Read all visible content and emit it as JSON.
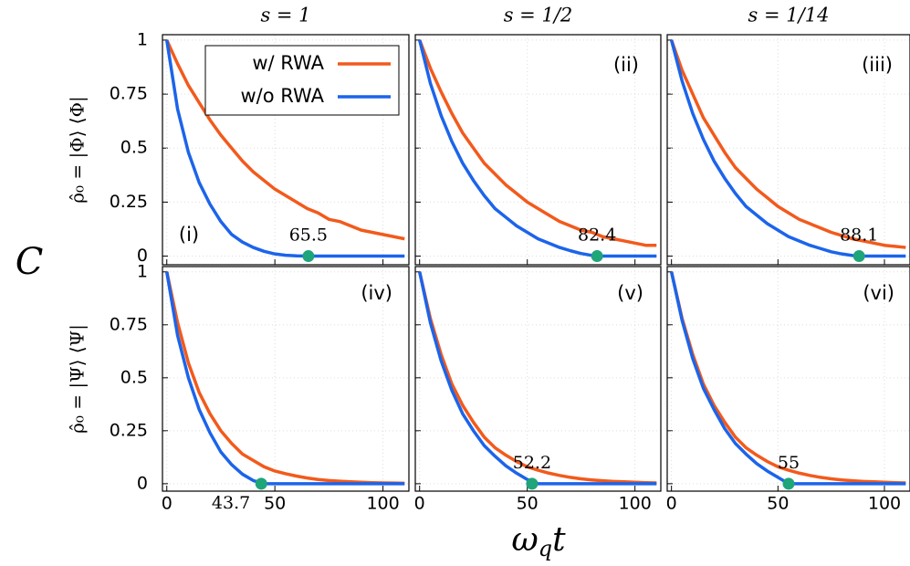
{
  "figure": {
    "ylabel": "C",
    "xlabel": [
      "ω",
      "q",
      "t"
    ]
  },
  "chart_data": [
    {
      "type": "line",
      "title": "s = 1",
      "ylabel": "ρ̂₀ = |Φ⟩ ⟨Φ|",
      "annotation": "(i)",
      "x": [
        0,
        5,
        10,
        15,
        20,
        25,
        30,
        35,
        40,
        45,
        50,
        55,
        60,
        65,
        70,
        75,
        80,
        85,
        90,
        95,
        100,
        105,
        110
      ],
      "series": [
        {
          "name": "w/ RWA",
          "color": "#f25a1c",
          "values": [
            1,
            0.89,
            0.79,
            0.71,
            0.63,
            0.56,
            0.5,
            0.44,
            0.39,
            0.35,
            0.31,
            0.28,
            0.25,
            0.22,
            0.2,
            0.17,
            0.16,
            0.14,
            0.12,
            0.11,
            0.1,
            0.09,
            0.08
          ]
        },
        {
          "name": "w/o RWA",
          "color": "#1c64ea",
          "values": [
            1,
            0.68,
            0.48,
            0.34,
            0.24,
            0.16,
            0.1,
            0.065,
            0.04,
            0.022,
            0.01,
            0.004,
            0.001,
            0,
            0,
            0,
            0,
            0,
            0,
            0,
            0,
            0,
            0
          ]
        }
      ],
      "zero_crossing": {
        "x": 65.5,
        "y": 0,
        "color": "#1fa57a"
      },
      "xlim": [
        -2,
        112
      ],
      "ylim": [
        -0.04,
        1.025
      ],
      "xticks": [
        0,
        50,
        100
      ],
      "yticks": [
        0,
        0.25,
        0.5,
        0.75,
        1
      ],
      "grid": true
    },
    {
      "type": "line",
      "title": "s = 1/2",
      "annotation": "(ii)",
      "x": [
        0,
        5,
        10,
        15,
        20,
        25,
        30,
        35,
        40,
        45,
        50,
        55,
        60,
        65,
        70,
        75,
        80,
        85,
        90,
        95,
        100,
        105,
        110
      ],
      "series": [
        {
          "color": "#f25a1c",
          "values": [
            1,
            0.87,
            0.76,
            0.66,
            0.57,
            0.5,
            0.43,
            0.38,
            0.33,
            0.29,
            0.25,
            0.22,
            0.19,
            0.16,
            0.14,
            0.12,
            0.11,
            0.09,
            0.08,
            0.07,
            0.06,
            0.05,
            0.05
          ]
        },
        {
          "color": "#1c64ea",
          "values": [
            1,
            0.8,
            0.65,
            0.53,
            0.43,
            0.35,
            0.28,
            0.22,
            0.18,
            0.14,
            0.11,
            0.08,
            0.06,
            0.04,
            0.025,
            0.012,
            0.003,
            0,
            0,
            0,
            0,
            0,
            0
          ]
        }
      ],
      "zero_crossing": {
        "x": 82.4,
        "y": 0,
        "color": "#1fa57a"
      },
      "xlim": [
        -2,
        112
      ],
      "ylim": [
        -0.04,
        1.025
      ],
      "xticks": [
        0,
        50,
        100
      ],
      "yticks": [
        0,
        0.25,
        0.5,
        0.75,
        1
      ],
      "grid": true
    },
    {
      "type": "line",
      "title": "s = 1/14",
      "annotation": "(iii)",
      "x": [
        0,
        5,
        10,
        15,
        20,
        25,
        30,
        35,
        40,
        45,
        50,
        55,
        60,
        65,
        70,
        75,
        80,
        85,
        90,
        95,
        100,
        105,
        110
      ],
      "series": [
        {
          "color": "#f25a1c",
          "values": [
            1,
            0.86,
            0.75,
            0.64,
            0.56,
            0.48,
            0.41,
            0.36,
            0.31,
            0.27,
            0.23,
            0.2,
            0.17,
            0.15,
            0.13,
            0.11,
            0.095,
            0.08,
            0.07,
            0.06,
            0.05,
            0.045,
            0.04
          ]
        },
        {
          "color": "#1c64ea",
          "values": [
            1,
            0.81,
            0.66,
            0.54,
            0.44,
            0.36,
            0.29,
            0.23,
            0.19,
            0.15,
            0.12,
            0.09,
            0.07,
            0.05,
            0.035,
            0.02,
            0.01,
            0.003,
            0,
            0,
            0,
            0,
            0
          ]
        }
      ],
      "zero_crossing": {
        "x": 88.1,
        "y": 0,
        "color": "#1fa57a"
      },
      "xlim": [
        -2,
        112
      ],
      "ylim": [
        -0.04,
        1.025
      ],
      "xticks": [
        0,
        50,
        100
      ],
      "yticks": [
        0,
        0.25,
        0.5,
        0.75,
        1
      ],
      "grid": true
    },
    {
      "type": "line",
      "ylabel": "ρ̂₀ = |Ψ⟩ ⟨Ψ|",
      "annotation": "(iv)",
      "x": [
        0,
        5,
        10,
        15,
        20,
        25,
        30,
        35,
        40,
        45,
        50,
        55,
        60,
        65,
        70,
        75,
        80,
        85,
        90,
        95,
        100,
        105,
        110
      ],
      "series": [
        {
          "color": "#f25a1c",
          "values": [
            1,
            0.76,
            0.57,
            0.43,
            0.33,
            0.25,
            0.19,
            0.14,
            0.11,
            0.08,
            0.06,
            0.047,
            0.036,
            0.027,
            0.02,
            0.015,
            0.012,
            0.009,
            0.007,
            0.005,
            0.004,
            0.003,
            0.002
          ]
        },
        {
          "color": "#1c64ea",
          "values": [
            1,
            0.7,
            0.5,
            0.35,
            0.24,
            0.15,
            0.09,
            0.045,
            0.015,
            0,
            0,
            0,
            0,
            0,
            0,
            0,
            0,
            0,
            0,
            0,
            0,
            0,
            0
          ]
        }
      ],
      "zero_crossing": {
        "x": 43.7,
        "y": 0,
        "color": "#1fa57a"
      },
      "xlim": [
        -2,
        112
      ],
      "ylim": [
        -0.035,
        1.025
      ],
      "xticks": [
        0,
        50,
        100
      ],
      "yticks": [
        0,
        0.25,
        0.5,
        0.75,
        1
      ],
      "grid": true
    },
    {
      "type": "line",
      "annotation": "(v)",
      "x": [
        0,
        5,
        10,
        15,
        20,
        25,
        30,
        35,
        40,
        45,
        50,
        55,
        60,
        65,
        70,
        75,
        80,
        85,
        90,
        95,
        100,
        105,
        110
      ],
      "series": [
        {
          "color": "#f25a1c",
          "values": [
            1,
            0.78,
            0.61,
            0.47,
            0.37,
            0.29,
            0.22,
            0.17,
            0.135,
            0.105,
            0.08,
            0.064,
            0.05,
            0.039,
            0.03,
            0.023,
            0.018,
            0.014,
            0.011,
            0.009,
            0.007,
            0.005,
            0.004
          ]
        },
        {
          "color": "#1c64ea",
          "values": [
            1,
            0.76,
            0.58,
            0.44,
            0.33,
            0.25,
            0.18,
            0.13,
            0.085,
            0.05,
            0.02,
            0,
            0,
            0,
            0,
            0,
            0,
            0,
            0,
            0,
            0,
            0,
            0
          ]
        }
      ],
      "zero_crossing": {
        "x": 52.2,
        "y": 0,
        "color": "#1fa57a"
      },
      "xlim": [
        -2,
        112
      ],
      "ylim": [
        -0.035,
        1.025
      ],
      "xticks": [
        0,
        50,
        100
      ],
      "yticks": [
        0,
        0.25,
        0.5,
        0.75,
        1
      ],
      "grid": true
    },
    {
      "type": "line",
      "annotation": "(vi)",
      "x": [
        0,
        5,
        10,
        15,
        20,
        25,
        30,
        35,
        40,
        45,
        50,
        55,
        60,
        65,
        70,
        75,
        80,
        85,
        90,
        95,
        100,
        105,
        110
      ],
      "series": [
        {
          "color": "#f25a1c",
          "values": [
            1,
            0.78,
            0.61,
            0.47,
            0.37,
            0.29,
            0.22,
            0.17,
            0.135,
            0.105,
            0.08,
            0.064,
            0.05,
            0.039,
            0.03,
            0.023,
            0.018,
            0.014,
            0.011,
            0.009,
            0.007,
            0.005,
            0.004
          ]
        },
        {
          "color": "#1c64ea",
          "values": [
            1,
            0.77,
            0.59,
            0.45,
            0.35,
            0.26,
            0.19,
            0.14,
            0.095,
            0.06,
            0.03,
            0,
            0,
            0,
            0,
            0,
            0,
            0,
            0,
            0,
            0,
            0,
            0
          ]
        }
      ],
      "zero_crossing": {
        "x": 55,
        "y": 0,
        "color": "#1fa57a"
      },
      "xlim": [
        -2,
        112
      ],
      "ylim": [
        -0.035,
        1.025
      ],
      "xticks": [
        0,
        50,
        100
      ],
      "yticks": [
        0,
        0.25,
        0.5,
        0.75,
        1
      ],
      "grid": true
    }
  ]
}
